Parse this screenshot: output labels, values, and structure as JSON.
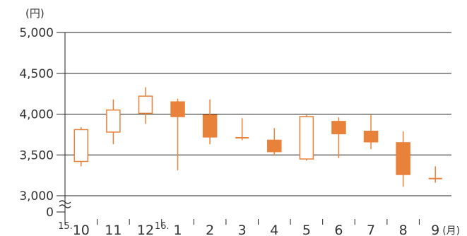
{
  "chart_data": {
    "type": "candlestick",
    "y_unit_label": "(円)",
    "x_unit_label": "(月)",
    "yticks": [
      "5,000",
      "4,500",
      "4,000",
      "3,500",
      "3,000",
      "0"
    ],
    "ylim": [
      3000,
      5000
    ],
    "axis_break": true,
    "categories": [
      {
        "prefix": "15.",
        "label": "10"
      },
      {
        "prefix": "",
        "label": "11"
      },
      {
        "prefix": "",
        "label": "12"
      },
      {
        "prefix": "16.",
        "label": "1"
      },
      {
        "prefix": "",
        "label": "2"
      },
      {
        "prefix": "",
        "label": "3"
      },
      {
        "prefix": "",
        "label": "4"
      },
      {
        "prefix": "",
        "label": "5"
      },
      {
        "prefix": "",
        "label": "6"
      },
      {
        "prefix": "",
        "label": "7"
      },
      {
        "prefix": "",
        "label": "8"
      },
      {
        "prefix": "",
        "label": "9"
      }
    ],
    "candles": [
      {
        "open": 3420,
        "close": 3810,
        "high": 3840,
        "low": 3360
      },
      {
        "open": 3780,
        "close": 4050,
        "high": 4180,
        "low": 3630
      },
      {
        "open": 4010,
        "close": 4220,
        "high": 4330,
        "low": 3880
      },
      {
        "open": 4150,
        "close": 3970,
        "high": 4190,
        "low": 3310
      },
      {
        "open": 3990,
        "close": 3720,
        "high": 4180,
        "low": 3630
      },
      {
        "open": 3710,
        "close": 3700,
        "high": 3950,
        "low": 3680
      },
      {
        "open": 3680,
        "close": 3540,
        "high": 3830,
        "low": 3490
      },
      {
        "open": 3450,
        "close": 3970,
        "high": 3990,
        "low": 3430
      },
      {
        "open": 3910,
        "close": 3760,
        "high": 3960,
        "low": 3460
      },
      {
        "open": 3790,
        "close": 3660,
        "high": 3990,
        "low": 3570
      },
      {
        "open": 3650,
        "close": 3260,
        "high": 3790,
        "low": 3110
      },
      {
        "open": 3210,
        "close": 3210,
        "high": 3360,
        "low": 3160
      }
    ],
    "colors": {
      "up": "#e8813a",
      "down": "#e8813a",
      "up_fill": "#ffffff",
      "down_fill": "#e8813a",
      "grid": "#222222",
      "text": "#333333"
    }
  }
}
